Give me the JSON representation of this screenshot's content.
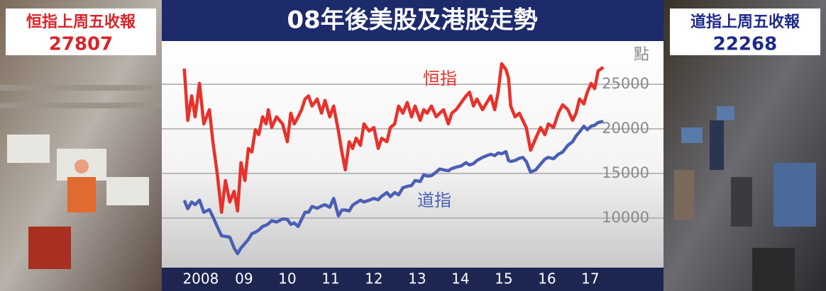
{
  "chart_data": {
    "type": "line",
    "title": "08年後美股及港股走勢",
    "y_unit": "點",
    "xlim": [
      2007.6,
      2019.19
    ],
    "xticks": [
      {
        "value": 2008.5,
        "label": "2008"
      },
      {
        "value": 2009.5,
        "label": "09"
      },
      {
        "value": 2010.5,
        "label": "10"
      },
      {
        "value": 2011.5,
        "label": "11"
      },
      {
        "value": 2012.5,
        "label": "12"
      },
      {
        "value": 2013.5,
        "label": "13"
      },
      {
        "value": 2014.5,
        "label": "14"
      },
      {
        "value": 2015.5,
        "label": "15"
      },
      {
        "value": 2016.5,
        "label": "16"
      },
      {
        "value": 2017.5,
        "label": "17"
      }
    ],
    "ylim": [
      4440,
      29840
    ],
    "yticks": [
      10000,
      15000,
      20000,
      25000
    ],
    "grid": true,
    "x": [
      2008.12,
      2008.2,
      2008.29,
      2008.37,
      2008.47,
      2008.57,
      2008.7,
      2008.78,
      2008.88,
      2008.98,
      2009.07,
      2009.17,
      2009.27,
      2009.35,
      2009.43,
      2009.52,
      2009.6,
      2009.68,
      2009.76,
      2009.84,
      2009.93,
      2010.01,
      2010.06,
      2010.14,
      2010.25,
      2010.39,
      2010.5,
      2010.58,
      2010.66,
      2010.75,
      2010.83,
      2010.91,
      2010.99,
      2011.07,
      2011.19,
      2011.29,
      2011.37,
      2011.48,
      2011.57,
      2011.68,
      2011.76,
      2011.84,
      2011.93,
      2012.01,
      2012.09,
      2012.19,
      2012.27,
      2012.39,
      2012.5,
      2012.6,
      2012.68,
      2012.8,
      2012.88,
      2012.98,
      2013.07,
      2013.17,
      2013.27,
      2013.37,
      2013.45,
      2013.57,
      2013.65,
      2013.73,
      2013.83,
      2013.94,
      2014.02,
      2014.11,
      2014.22,
      2014.3,
      2014.4,
      2014.52,
      2014.63,
      2014.71,
      2014.8,
      2014.88,
      2015.01,
      2015.11,
      2015.2,
      2015.29,
      2015.37,
      2015.45,
      2015.55,
      2015.61,
      2015.66,
      2015.76,
      2015.86,
      2015.94,
      2016.02,
      2016.12,
      2016.24,
      2016.35,
      2016.45,
      2016.53,
      2016.65,
      2016.76,
      2016.86,
      2016.98,
      2017.09,
      2017.17,
      2017.25,
      2017.35,
      2017.43,
      2017.52,
      2017.6,
      2017.68,
      2017.8
    ],
    "series": [
      {
        "name": "恒指",
        "color": "#e8312a",
        "values": [
          26750,
          20950,
          23700,
          21350,
          25100,
          20550,
          22150,
          18550,
          15000,
          10650,
          14200,
          11800,
          13000,
          10800,
          16200,
          14200,
          17800,
          17400,
          19900,
          19350,
          21350,
          20550,
          22150,
          20150,
          21350,
          20550,
          18550,
          21750,
          20550,
          21350,
          22150,
          23350,
          23700,
          22550,
          23350,
          21750,
          23200,
          21350,
          22550,
          19750,
          17400,
          15400,
          18550,
          17800,
          18950,
          18150,
          20550,
          19750,
          20150,
          17800,
          18950,
          18550,
          20150,
          20550,
          22550,
          21750,
          22950,
          21350,
          22550,
          20950,
          22150,
          21750,
          22550,
          21350,
          21750,
          22150,
          20550,
          21750,
          22150,
          22950,
          23700,
          24100,
          22550,
          23350,
          22150,
          22950,
          23700,
          22150,
          24100,
          27300,
          26650,
          25700,
          22550,
          21350,
          21750,
          20950,
          20150,
          17600,
          18950,
          20150,
          19350,
          20550,
          20150,
          21750,
          22700,
          22150,
          20950,
          21750,
          23350,
          22800,
          24100,
          25100,
          24500,
          26500,
          26900
        ]
      },
      {
        "name": "道指",
        "color": "#4a5fb5",
        "values": [
          12000,
          11050,
          11800,
          11500,
          12000,
          10650,
          10950,
          10150,
          9050,
          8000,
          7950,
          7850,
          6650,
          6000,
          6650,
          7150,
          7600,
          8250,
          8400,
          8650,
          9050,
          9200,
          9350,
          9700,
          9550,
          9900,
          9850,
          9300,
          9450,
          9050,
          9850,
          10650,
          10650,
          11300,
          11100,
          11350,
          11500,
          11200,
          12200,
          10250,
          10900,
          10900,
          10800,
          11450,
          11700,
          12000,
          11800,
          12000,
          12200,
          12050,
          12450,
          12850,
          12400,
          12850,
          12600,
          13400,
          13550,
          13650,
          14200,
          14100,
          14850,
          14700,
          14750,
          15150,
          15500,
          15400,
          15300,
          15550,
          15700,
          15850,
          16200,
          15950,
          16100,
          16450,
          16800,
          17000,
          17150,
          17000,
          17300,
          17200,
          17450,
          16450,
          16350,
          16450,
          16700,
          16800,
          16350,
          15150,
          15400,
          16050,
          16600,
          16800,
          16650,
          17150,
          17400,
          18150,
          18550,
          19200,
          19650,
          20300,
          19900,
          20300,
          20400,
          20700,
          20850
        ]
      }
    ]
  },
  "callouts": [
    {
      "label": "恒指上周五收報",
      "value": 27807
    },
    {
      "label": "道指上周五收報",
      "value": 22268
    }
  ]
}
